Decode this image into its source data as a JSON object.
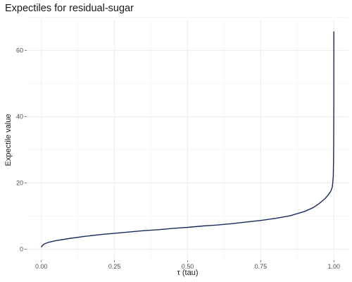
{
  "chart_data": {
    "type": "line",
    "title": "Expectiles for residual-sugar",
    "xlabel": "τ (tau)",
    "ylabel": "Expectile value",
    "xlim": [
      -0.05,
      1.05
    ],
    "ylim": [
      -3.3,
      69.3
    ],
    "x_ticks": [
      0.0,
      0.25,
      0.5,
      0.75,
      1.0
    ],
    "x_tick_labels": [
      "0.00",
      "0.25",
      "0.50",
      "0.75",
      "1.00"
    ],
    "y_ticks": [
      0,
      20,
      40,
      60
    ],
    "y_tick_labels": [
      "0",
      "20",
      "40",
      "60"
    ],
    "grid": true,
    "legend": "none",
    "series": [
      {
        "color": "#1a2a5e",
        "x": [
          0.0,
          0.003,
          0.01,
          0.025,
          0.05,
          0.1,
          0.15,
          0.2,
          0.25,
          0.3,
          0.35,
          0.4,
          0.45,
          0.5,
          0.55,
          0.6,
          0.65,
          0.7,
          0.75,
          0.8,
          0.85,
          0.9,
          0.93,
          0.95,
          0.97,
          0.98,
          0.99,
          0.995,
          0.998,
          0.999,
          0.9995,
          0.9999,
          1.0
        ],
        "y": [
          0.6,
          1.1,
          1.6,
          2.1,
          2.6,
          3.3,
          3.9,
          4.4,
          4.8,
          5.2,
          5.6,
          5.9,
          6.3,
          6.6,
          7.0,
          7.3,
          7.7,
          8.2,
          8.7,
          9.3,
          10.1,
          11.4,
          12.6,
          13.8,
          15.3,
          16.3,
          17.6,
          18.9,
          22.0,
          27.0,
          33.0,
          45.0,
          65.8
        ]
      }
    ]
  }
}
